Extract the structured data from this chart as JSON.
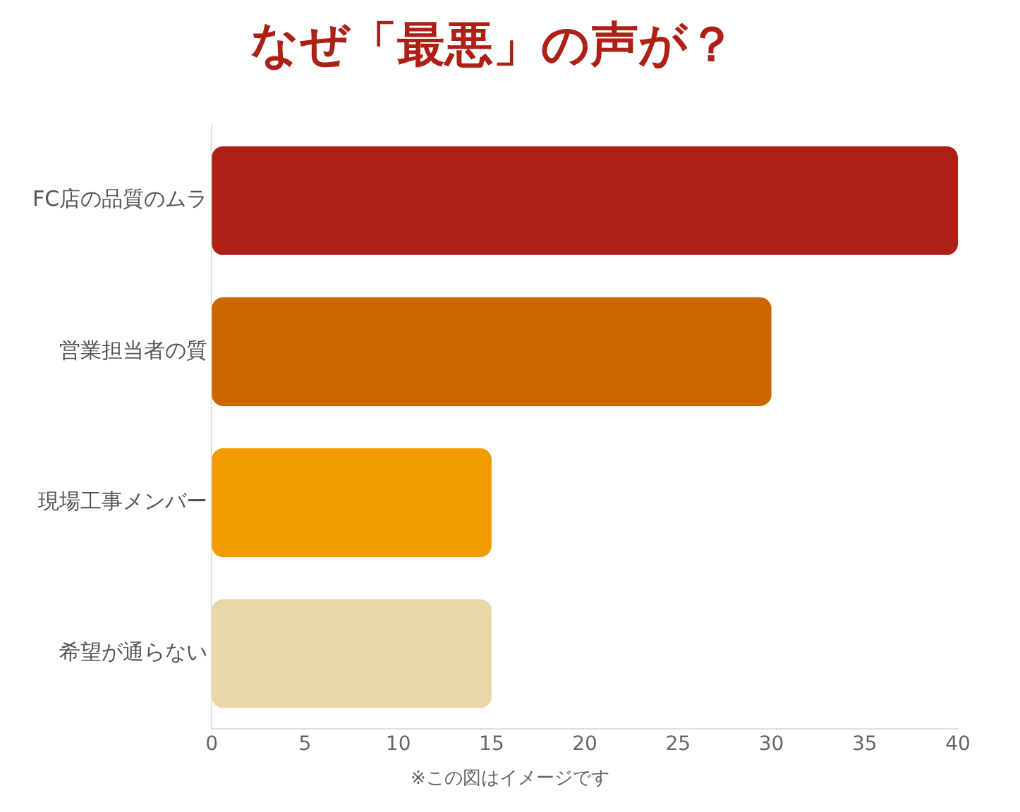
{
  "chart_data": {
    "type": "bar",
    "orientation": "horizontal",
    "title": "なぜ「最悪」の声が？",
    "categories": [
      "FC店の品質のムラ",
      "営業担当者の質",
      "現場工事メンバー",
      "希望が通らない"
    ],
    "values": [
      40,
      30,
      15,
      15
    ],
    "colors": [
      "#ae2016",
      "#cc6600",
      "#f09c00",
      "#e9d7a7"
    ],
    "xlim": [
      0,
      40
    ],
    "xticks": [
      0,
      5,
      10,
      15,
      20,
      25,
      30,
      35,
      40
    ],
    "grid": false,
    "annotations": [
      "※この図はイメージです"
    ]
  }
}
